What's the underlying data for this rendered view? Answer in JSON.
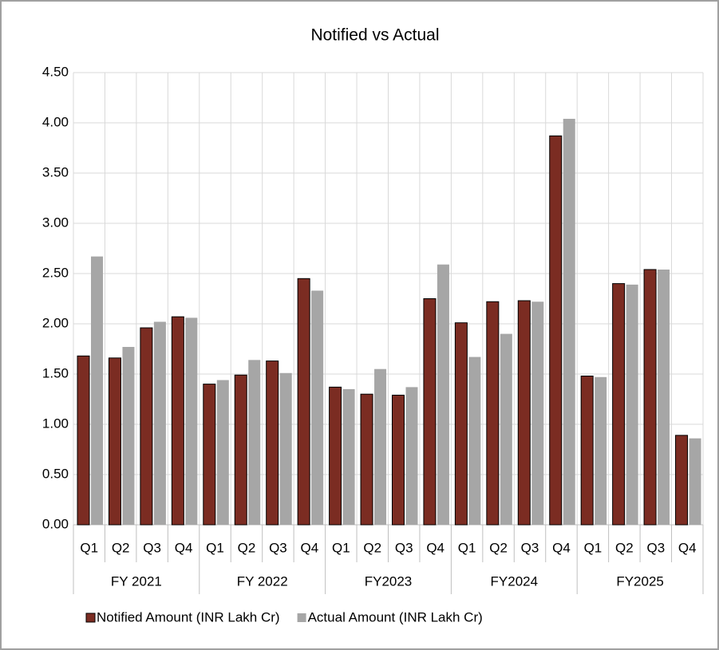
{
  "chart_data": {
    "type": "bar",
    "title": "Notified vs Actual",
    "categories": [
      "Q1",
      "Q2",
      "Q3",
      "Q4",
      "Q1",
      "Q2",
      "Q3",
      "Q4",
      "Q1",
      "Q2",
      "Q3",
      "Q4",
      "Q1",
      "Q2",
      "Q3",
      "Q4",
      "Q1",
      "Q2",
      "Q3",
      "Q4"
    ],
    "groups": [
      "FY 2021",
      "FY 2022",
      "FY2023",
      "FY2024",
      "FY2025"
    ],
    "series": [
      {
        "name": "Notified Amount (INR Lakh Cr)",
        "color": "#7b2c22",
        "values": [
          1.68,
          1.66,
          1.96,
          2.07,
          1.4,
          1.49,
          1.63,
          2.45,
          1.37,
          1.3,
          1.29,
          2.25,
          2.01,
          2.22,
          2.23,
          3.87,
          1.48,
          2.4,
          2.54,
          0.89
        ]
      },
      {
        "name": "Actual Amount (INR Lakh Cr)",
        "color": "#a6a6a6",
        "values": [
          2.67,
          1.77,
          2.02,
          2.06,
          1.44,
          1.64,
          1.51,
          2.33,
          1.35,
          1.55,
          1.37,
          2.59,
          1.67,
          1.9,
          2.22,
          4.04,
          1.47,
          2.39,
          2.54,
          0.86
        ]
      }
    ],
    "ylim": [
      0,
      4.5
    ],
    "yticks": [
      {
        "value": 0,
        "label": "0.00"
      },
      {
        "value": 0.5,
        "label": "0.50"
      },
      {
        "value": 1,
        "label": "1.00"
      },
      {
        "value": 1.5,
        "label": "1.50"
      },
      {
        "value": 2,
        "label": "2.00"
      },
      {
        "value": 2.5,
        "label": "2.50"
      },
      {
        "value": 3,
        "label": "3.00"
      },
      {
        "value": 3.5,
        "label": "3.50"
      },
      {
        "value": 4,
        "label": "4.00"
      },
      {
        "value": 4.5,
        "label": "4.50"
      }
    ],
    "grid": true,
    "legend": "bottom"
  }
}
